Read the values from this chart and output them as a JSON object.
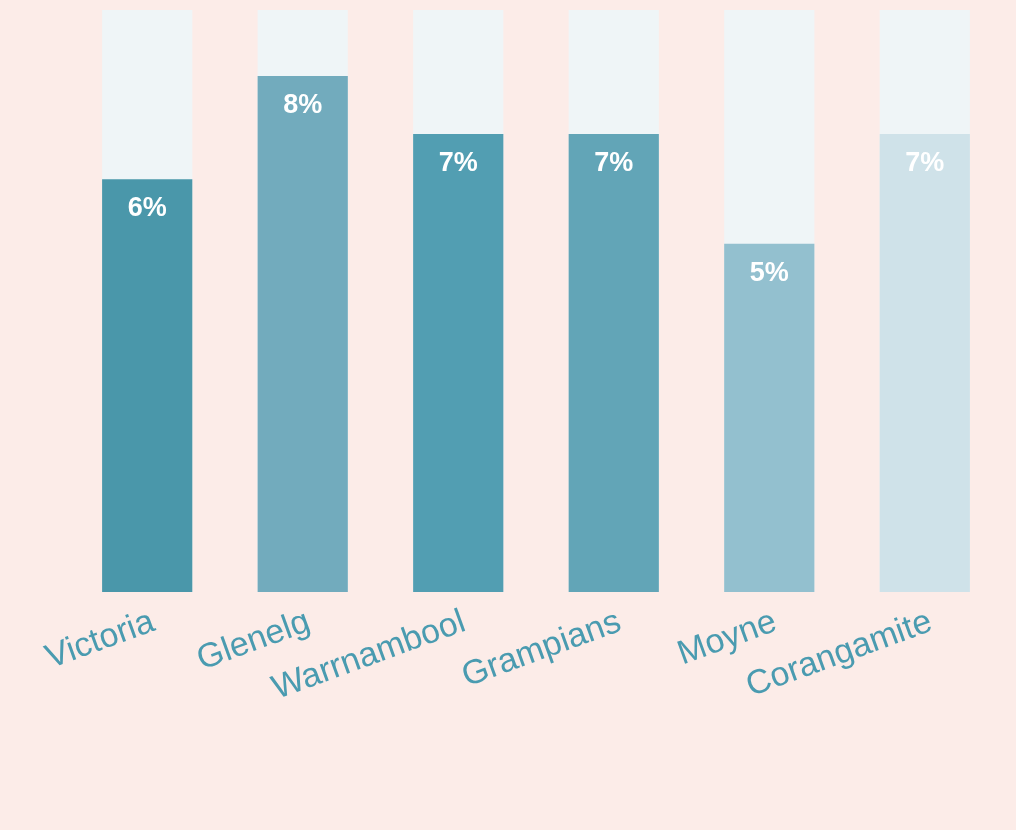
{
  "chart_data": {
    "type": "bar",
    "categories": [
      "Victoria",
      "Glenelg",
      "Warrnambool",
      "Grampians",
      "Moyne",
      "Corangamite"
    ],
    "values": [
      6.4,
      8,
      7.1,
      7.1,
      5.4,
      7.1
    ],
    "value_labels": [
      "6%",
      "8%",
      "7%",
      "7%",
      "5%",
      "7%"
    ],
    "colors": [
      "#4a97aa",
      "#72abbd",
      "#529eb2",
      "#62a5b7",
      "#93c0cf",
      "#cfe2e9"
    ]
  }
}
